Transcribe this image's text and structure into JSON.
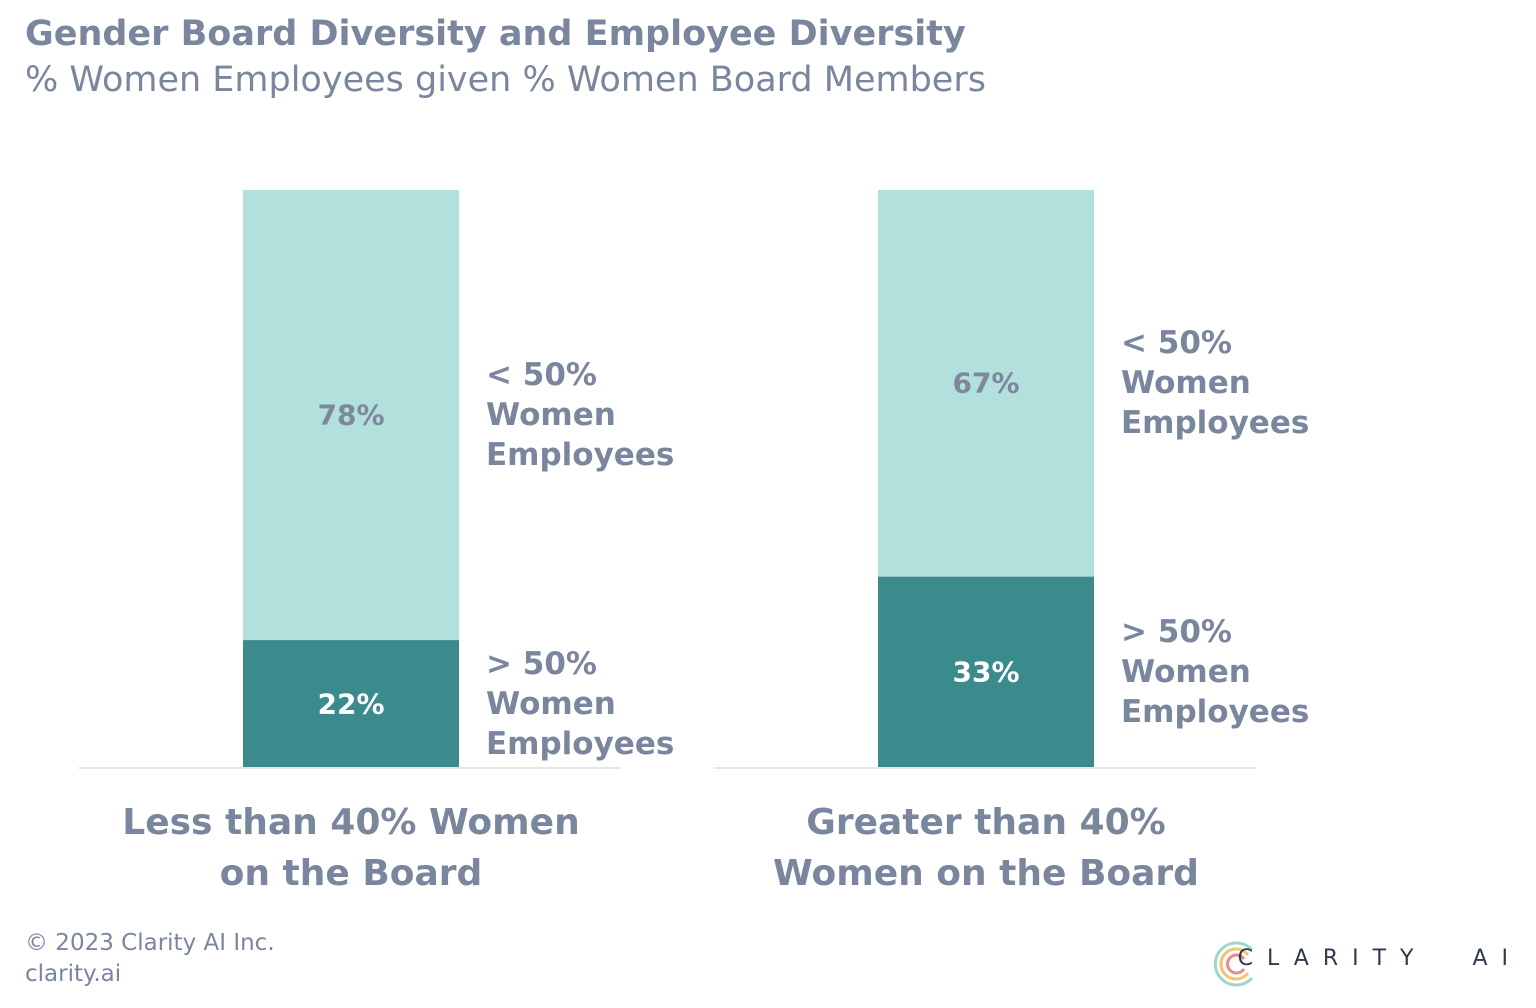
{
  "chart_data": {
    "type": "bar",
    "stacked": true,
    "title": "Gender Board Diversity and Employee Diversity",
    "subtitle": "% Women Employees given % Women Board Members",
    "categories": [
      "Less than 40% Women on the Board",
      "Greater than 40% Women on the Board"
    ],
    "series": [
      {
        "name": "> 50% Women Employees",
        "color": "#3b8a8c",
        "values": [
          22,
          33
        ],
        "value_labels": [
          "22%",
          "33%"
        ]
      },
      {
        "name": "< 50% Women Employees",
        "color": "#b2e0dc",
        "values": [
          78,
          67
        ],
        "value_labels": [
          "78%",
          "67%"
        ]
      }
    ],
    "ylim": [
      0,
      100
    ]
  },
  "footer": {
    "copyright": "© 2023 Clarity AI Inc.",
    "url": "clarity.ai",
    "logo": "CLARITY AI"
  }
}
